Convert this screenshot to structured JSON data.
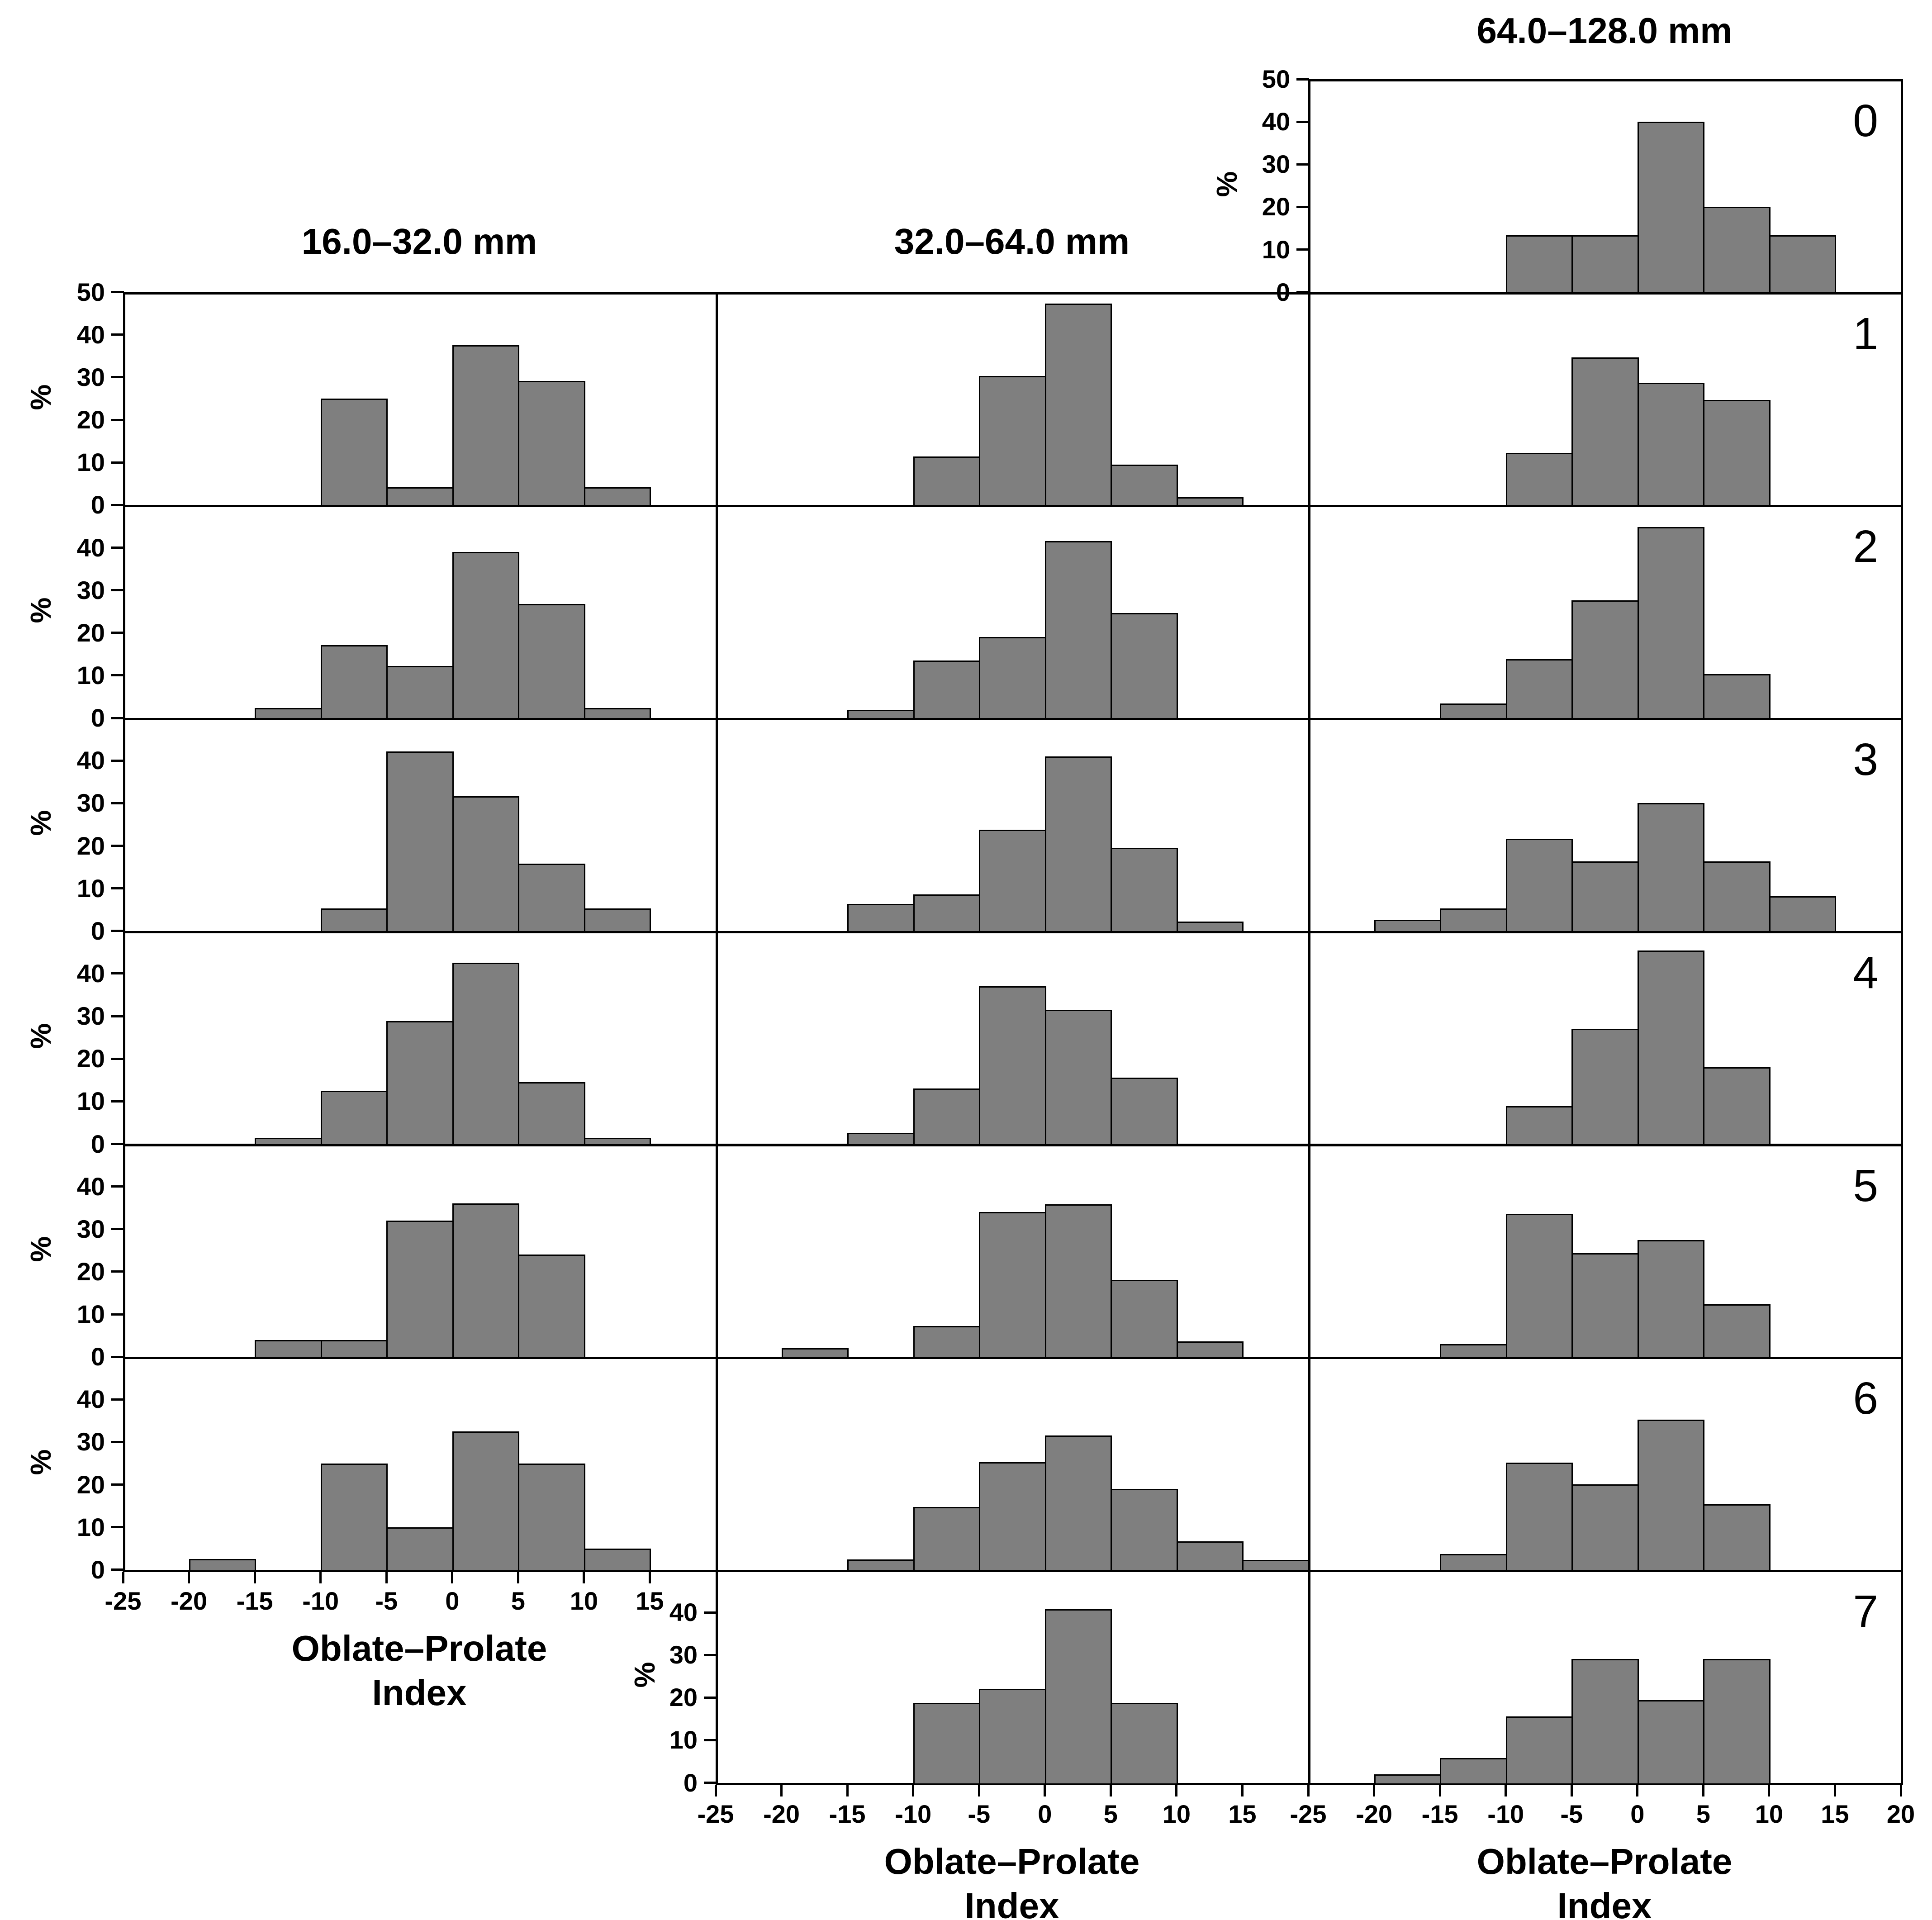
{
  "labels": {
    "y_axis": "%",
    "x_axis_line1": "Oblate–Prolate",
    "x_axis_line2": "Index"
  },
  "colors": {
    "background": "#ffffff",
    "bar_fill": "#7f7f7f",
    "bar_border": "#000000",
    "axis": "#000000",
    "text": "#000000"
  },
  "chart_data": {
    "type": "bar",
    "subtype": "histogram_small_multiples",
    "x_label": "Oblate–Prolate Index",
    "y_label": "%",
    "bin_width": 5,
    "x_range": [
      -25,
      20
    ],
    "y_range": [
      0,
      50
    ],
    "grid": "off",
    "legend": "none",
    "row_labels": [
      "0",
      "1",
      "2",
      "3",
      "4",
      "5",
      "6",
      "7"
    ],
    "columns": [
      {
        "title": "16.0–32.0 mm",
        "x_tick_labels": [
          -25,
          -20,
          -15,
          -10,
          -5,
          0,
          5,
          10,
          15
        ],
        "panels": [
          {
            "row": 1,
            "yticks": [
              0,
              10,
              20,
              30,
              40,
              50
            ],
            "percent_label": true,
            "xaxis": false,
            "bars": [
              {
                "x0": -10,
                "pct": 25.0
              },
              {
                "x0": -5,
                "pct": 4.2
              },
              {
                "x0": 0,
                "pct": 37.5
              },
              {
                "x0": 5,
                "pct": 29.2
              },
              {
                "x0": 10,
                "pct": 4.2
              }
            ]
          },
          {
            "row": 2,
            "yticks": [
              0,
              10,
              20,
              30,
              40
            ],
            "percent_label": true,
            "xaxis": false,
            "bars": [
              {
                "x0": -15,
                "pct": 2.4
              },
              {
                "x0": -10,
                "pct": 17.1
              },
              {
                "x0": -5,
                "pct": 12.2
              },
              {
                "x0": 0,
                "pct": 39.0
              },
              {
                "x0": 5,
                "pct": 26.8
              },
              {
                "x0": 10,
                "pct": 2.4
              }
            ]
          },
          {
            "row": 3,
            "yticks": [
              0,
              10,
              20,
              30,
              40
            ],
            "percent_label": true,
            "xaxis": false,
            "bars": [
              {
                "x0": -10,
                "pct": 5.3
              },
              {
                "x0": -5,
                "pct": 42.1
              },
              {
                "x0": 0,
                "pct": 31.6
              },
              {
                "x0": 5,
                "pct": 15.8
              },
              {
                "x0": 10,
                "pct": 5.3
              }
            ]
          },
          {
            "row": 4,
            "yticks": [
              0,
              10,
              20,
              30,
              40
            ],
            "percent_label": true,
            "xaxis": false,
            "bars": [
              {
                "x0": -15,
                "pct": 1.4
              },
              {
                "x0": -10,
                "pct": 12.5
              },
              {
                "x0": -5,
                "pct": 28.8
              },
              {
                "x0": 0,
                "pct": 42.5
              },
              {
                "x0": 5,
                "pct": 14.5
              },
              {
                "x0": 10,
                "pct": 1.4
              }
            ]
          },
          {
            "row": 5,
            "yticks": [
              0,
              10,
              20,
              30,
              40
            ],
            "percent_label": true,
            "xaxis": false,
            "bars": [
              {
                "x0": -15,
                "pct": 4.0
              },
              {
                "x0": -10,
                "pct": 4.0
              },
              {
                "x0": -5,
                "pct": 32.0
              },
              {
                "x0": 0,
                "pct": 36.0
              },
              {
                "x0": 5,
                "pct": 24.0
              }
            ]
          },
          {
            "row": 6,
            "yticks": [
              0,
              10,
              20,
              30,
              40
            ],
            "percent_label": true,
            "xaxis": true,
            "bars": [
              {
                "x0": -20,
                "pct": 2.5
              },
              {
                "x0": -10,
                "pct": 25.0
              },
              {
                "x0": -5,
                "pct": 10.0
              },
              {
                "x0": 0,
                "pct": 32.5
              },
              {
                "x0": 5,
                "pct": 25.0
              },
              {
                "x0": 10,
                "pct": 5.0
              }
            ]
          }
        ]
      },
      {
        "title": "32.0–64.0 mm",
        "x_tick_labels": [
          -25,
          -20,
          -15,
          -10,
          -5,
          0,
          5,
          10,
          15
        ],
        "panels": [
          {
            "row": 1,
            "yticks": [],
            "percent_label": false,
            "xaxis": false,
            "bars": [
              {
                "x0": -10,
                "pct": 11.4
              },
              {
                "x0": -5,
                "pct": 30.3
              },
              {
                "x0": 0,
                "pct": 47.3
              },
              {
                "x0": 5,
                "pct": 9.5
              },
              {
                "x0": 10,
                "pct": 1.9
              }
            ]
          },
          {
            "row": 2,
            "yticks": [],
            "percent_label": false,
            "xaxis": false,
            "bars": [
              {
                "x0": -15,
                "pct": 1.9
              },
              {
                "x0": -10,
                "pct": 13.5
              },
              {
                "x0": -5,
                "pct": 19.0
              },
              {
                "x0": 0,
                "pct": 41.5
              },
              {
                "x0": 5,
                "pct": 24.7
              }
            ]
          },
          {
            "row": 3,
            "yticks": [],
            "percent_label": false,
            "xaxis": false,
            "bars": [
              {
                "x0": -15,
                "pct": 6.3
              },
              {
                "x0": -10,
                "pct": 8.6
              },
              {
                "x0": -5,
                "pct": 23.8
              },
              {
                "x0": 0,
                "pct": 41.0
              },
              {
                "x0": 5,
                "pct": 19.5
              },
              {
                "x0": 10,
                "pct": 2.2
              }
            ]
          },
          {
            "row": 4,
            "yticks": [],
            "percent_label": false,
            "xaxis": false,
            "bars": [
              {
                "x0": -15,
                "pct": 2.6
              },
              {
                "x0": -10,
                "pct": 13.0
              },
              {
                "x0": -5,
                "pct": 37.0
              },
              {
                "x0": 0,
                "pct": 31.5
              },
              {
                "x0": 5,
                "pct": 15.6
              }
            ]
          },
          {
            "row": 5,
            "yticks": [],
            "percent_label": false,
            "xaxis": false,
            "bars": [
              {
                "x0": -20,
                "pct": 2.0
              },
              {
                "x0": -10,
                "pct": 7.2
              },
              {
                "x0": -5,
                "pct": 34.0
              },
              {
                "x0": 0,
                "pct": 35.8
              },
              {
                "x0": 5,
                "pct": 18.1
              },
              {
                "x0": 10,
                "pct": 3.6
              }
            ]
          },
          {
            "row": 6,
            "yticks": [],
            "percent_label": false,
            "xaxis": false,
            "bars": [
              {
                "x0": -15,
                "pct": 2.4
              },
              {
                "x0": -10,
                "pct": 14.8
              },
              {
                "x0": -5,
                "pct": 25.3
              },
              {
                "x0": 0,
                "pct": 31.5
              },
              {
                "x0": 5,
                "pct": 19.0
              },
              {
                "x0": 10,
                "pct": 6.7
              },
              {
                "x0": 15,
                "pct": 2.3
              }
            ]
          },
          {
            "row": 7,
            "yticks": [
              0,
              10,
              20,
              30,
              40
            ],
            "percent_label": true,
            "xaxis": true,
            "bars": [
              {
                "x0": -10,
                "pct": 18.8
              },
              {
                "x0": -5,
                "pct": 22.0
              },
              {
                "x0": 0,
                "pct": 40.7
              },
              {
                "x0": 5,
                "pct": 18.8
              }
            ]
          }
        ]
      },
      {
        "title": "64.0–128.0 mm",
        "x_tick_labels": [
          -25,
          -20,
          -15,
          -10,
          -5,
          0,
          5,
          10,
          15,
          20
        ],
        "panels": [
          {
            "row": 0,
            "yticks": [
              0,
              10,
              20,
              30,
              40,
              50
            ],
            "percent_label": true,
            "xaxis": false,
            "bars": [
              {
                "x0": -10,
                "pct": 13.3
              },
              {
                "x0": -5,
                "pct": 13.3
              },
              {
                "x0": 0,
                "pct": 40.0
              },
              {
                "x0": 5,
                "pct": 20.0
              },
              {
                "x0": 10,
                "pct": 13.3
              }
            ]
          },
          {
            "row": 1,
            "yticks": [],
            "percent_label": false,
            "xaxis": false,
            "bars": [
              {
                "x0": -10,
                "pct": 12.3
              },
              {
                "x0": -5,
                "pct": 34.7
              },
              {
                "x0": 0,
                "pct": 28.7
              },
              {
                "x0": 5,
                "pct": 24.7
              }
            ]
          },
          {
            "row": 2,
            "yticks": [],
            "percent_label": false,
            "xaxis": false,
            "bars": [
              {
                "x0": -15,
                "pct": 3.4
              },
              {
                "x0": -10,
                "pct": 13.8
              },
              {
                "x0": -5,
                "pct": 27.6
              },
              {
                "x0": 0,
                "pct": 44.8
              },
              {
                "x0": 5,
                "pct": 10.3
              }
            ]
          },
          {
            "row": 3,
            "yticks": [],
            "percent_label": false,
            "xaxis": false,
            "bars": [
              {
                "x0": -20,
                "pct": 2.6
              },
              {
                "x0": -15,
                "pct": 5.3
              },
              {
                "x0": -10,
                "pct": 21.7
              },
              {
                "x0": -5,
                "pct": 16.3
              },
              {
                "x0": 0,
                "pct": 30.0
              },
              {
                "x0": 5,
                "pct": 16.3
              },
              {
                "x0": 10,
                "pct": 8.2
              }
            ]
          },
          {
            "row": 4,
            "yticks": [],
            "percent_label": false,
            "xaxis": false,
            "bars": [
              {
                "x0": -10,
                "pct": 8.9
              },
              {
                "x0": -5,
                "pct": 27.0
              },
              {
                "x0": 0,
                "pct": 45.4
              },
              {
                "x0": 5,
                "pct": 18.0
              }
            ]
          },
          {
            "row": 5,
            "yticks": [],
            "percent_label": false,
            "xaxis": false,
            "bars": [
              {
                "x0": -15,
                "pct": 3.0
              },
              {
                "x0": -10,
                "pct": 33.6
              },
              {
                "x0": -5,
                "pct": 24.3
              },
              {
                "x0": 0,
                "pct": 27.4
              },
              {
                "x0": 5,
                "pct": 12.3
              }
            ]
          },
          {
            "row": 6,
            "yticks": [],
            "percent_label": false,
            "xaxis": false,
            "bars": [
              {
                "x0": -15,
                "pct": 3.7
              },
              {
                "x0": -10,
                "pct": 25.2
              },
              {
                "x0": -5,
                "pct": 20.1
              },
              {
                "x0": 0,
                "pct": 35.3
              },
              {
                "x0": 5,
                "pct": 15.4
              }
            ]
          },
          {
            "row": 7,
            "yticks": [],
            "percent_label": false,
            "xaxis": true,
            "bars": [
              {
                "x0": -20,
                "pct": 2.0
              },
              {
                "x0": -15,
                "pct": 5.8
              },
              {
                "x0": -10,
                "pct": 15.6
              },
              {
                "x0": -5,
                "pct": 29.1
              },
              {
                "x0": 0,
                "pct": 19.4
              },
              {
                "x0": 5,
                "pct": 29.1
              }
            ]
          }
        ]
      }
    ]
  }
}
